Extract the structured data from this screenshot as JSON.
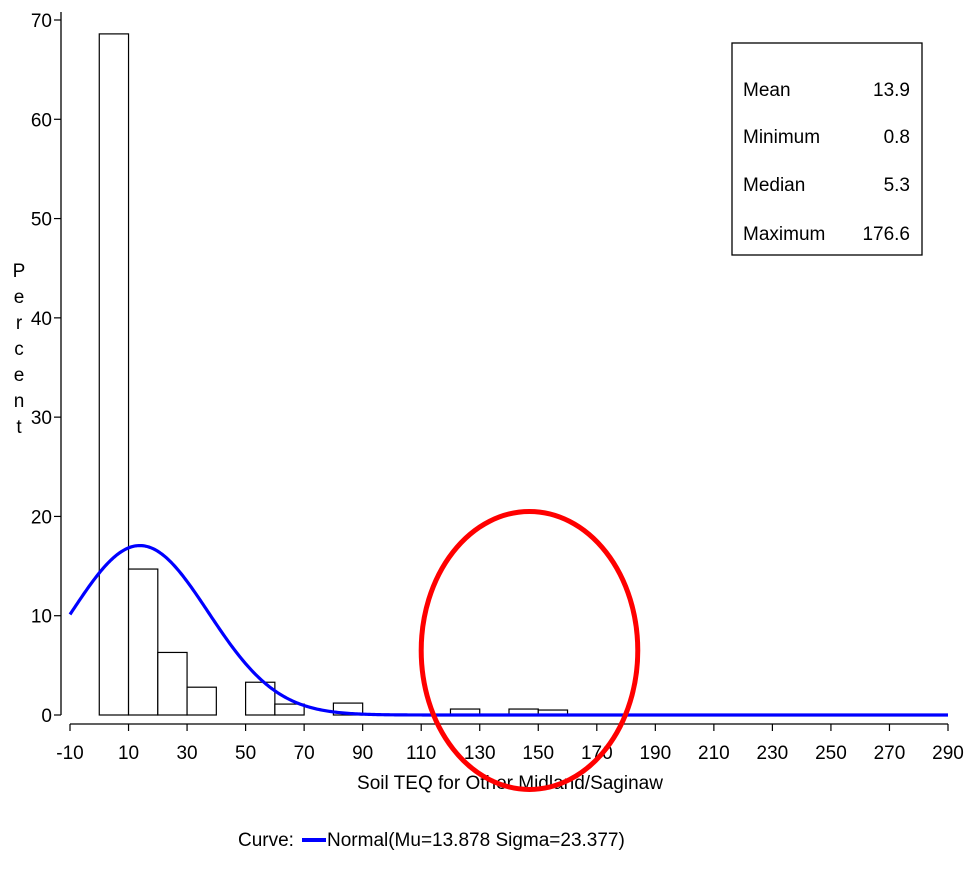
{
  "chart_data": {
    "type": "bar",
    "xlabel": "Soil TEQ for Other Midland/Saginaw",
    "ylabel": "Percent",
    "xlim": [
      -10,
      290
    ],
    "ylim": [
      0,
      70
    ],
    "x_ticks": [
      "-10",
      "10",
      "30",
      "50",
      "70",
      "90",
      "110",
      "130",
      "150",
      "170",
      "190",
      "210",
      "230",
      "250",
      "270",
      "290"
    ],
    "y_ticks": [
      "0",
      "10",
      "20",
      "30",
      "40",
      "50",
      "60",
      "70"
    ],
    "bin_width": 10,
    "bins": [
      {
        "x0": 0,
        "x1": 10,
        "value": 68.6
      },
      {
        "x0": 10,
        "x1": 20,
        "value": 14.7
      },
      {
        "x0": 20,
        "x1": 30,
        "value": 6.3
      },
      {
        "x0": 30,
        "x1": 40,
        "value": 2.8
      },
      {
        "x0": 40,
        "x1": 50,
        "value": 0
      },
      {
        "x0": 50,
        "x1": 60,
        "value": 3.3
      },
      {
        "x0": 60,
        "x1": 70,
        "value": 1.1
      },
      {
        "x0": 70,
        "x1": 80,
        "value": 0
      },
      {
        "x0": 80,
        "x1": 90,
        "value": 1.2
      },
      {
        "x0": 90,
        "x1": 100,
        "value": 0
      },
      {
        "x0": 100,
        "x1": 110,
        "value": 0
      },
      {
        "x0": 110,
        "x1": 120,
        "value": 0
      },
      {
        "x0": 120,
        "x1": 130,
        "value": 0.6
      },
      {
        "x0": 130,
        "x1": 140,
        "value": 0
      },
      {
        "x0": 140,
        "x1": 150,
        "value": 0.6
      },
      {
        "x0": 150,
        "x1": 160,
        "value": 0.5
      },
      {
        "x0": 160,
        "x1": 170,
        "value": 0
      },
      {
        "x0": 170,
        "x1": 180,
        "value": 0
      }
    ],
    "curve": {
      "type": "normal",
      "mu": 13.878,
      "sigma": 23.377,
      "color": "#0000ff",
      "legend_prefix": "Curve:",
      "legend_label": "Normal(Mu=13.878 Sigma=23.377)"
    },
    "stats": [
      {
        "label": "Mean",
        "value": "13.9"
      },
      {
        "label": "Minimum",
        "value": "0.8"
      },
      {
        "label": "Median",
        "value": "5.3"
      },
      {
        "label": "Maximum",
        "value": "176.6"
      }
    ],
    "annotation": {
      "shape": "ellipse",
      "color": "#ff0000",
      "center_x": 147,
      "center_y": 6.5,
      "radius_x": 37,
      "radius_y": 14
    }
  }
}
